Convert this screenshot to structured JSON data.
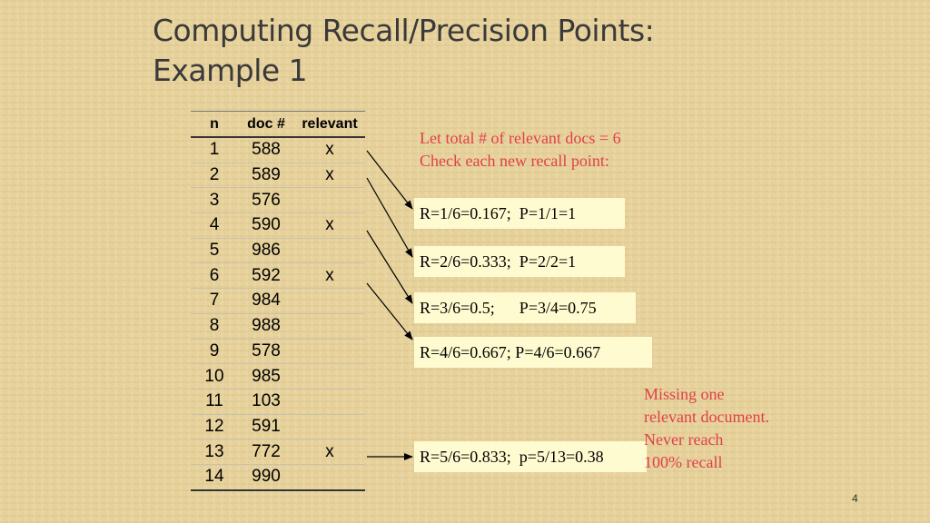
{
  "slide": {
    "title_line1": "Computing Recall/Precision Points:",
    "title_line2": "Example 1",
    "page_number": "4"
  },
  "table": {
    "headers": [
      "n",
      "doc #",
      "relevant"
    ],
    "rows": [
      [
        "1",
        "588",
        "x"
      ],
      [
        "2",
        "589",
        "x"
      ],
      [
        "3",
        "576",
        ""
      ],
      [
        "4",
        "590",
        "x"
      ],
      [
        "5",
        "986",
        ""
      ],
      [
        "6",
        "592",
        "x"
      ],
      [
        "7",
        "984",
        ""
      ],
      [
        "8",
        "988",
        ""
      ],
      [
        "9",
        "578",
        ""
      ],
      [
        "10",
        "985",
        ""
      ],
      [
        "11",
        "103",
        ""
      ],
      [
        "12",
        "591",
        ""
      ],
      [
        "13",
        "772",
        "x"
      ],
      [
        "14",
        "990",
        ""
      ]
    ]
  },
  "notes": {
    "top_line1": "Let total # of relevant docs = 6",
    "top_line2": "Check each new recall point:",
    "missing_line1": "Missing one",
    "missing_line2": "relevant document.",
    "missing_line3": "Never reach",
    "missing_line4": "100% recall"
  },
  "boxes": [
    "R=1/6=0.167;  P=1/1=1",
    "R=2/6=0.333;  P=2/2=1",
    "R=3/6=0.5;      P=3/4=0.75",
    "R=4/6=0.667; P=4/6=0.667",
    "R=5/6=0.833;  p=5/13=0.38"
  ],
  "colors": {
    "note_text": "#e0404a",
    "box_fill": "#fffbd0",
    "background": "#e7d29c"
  }
}
